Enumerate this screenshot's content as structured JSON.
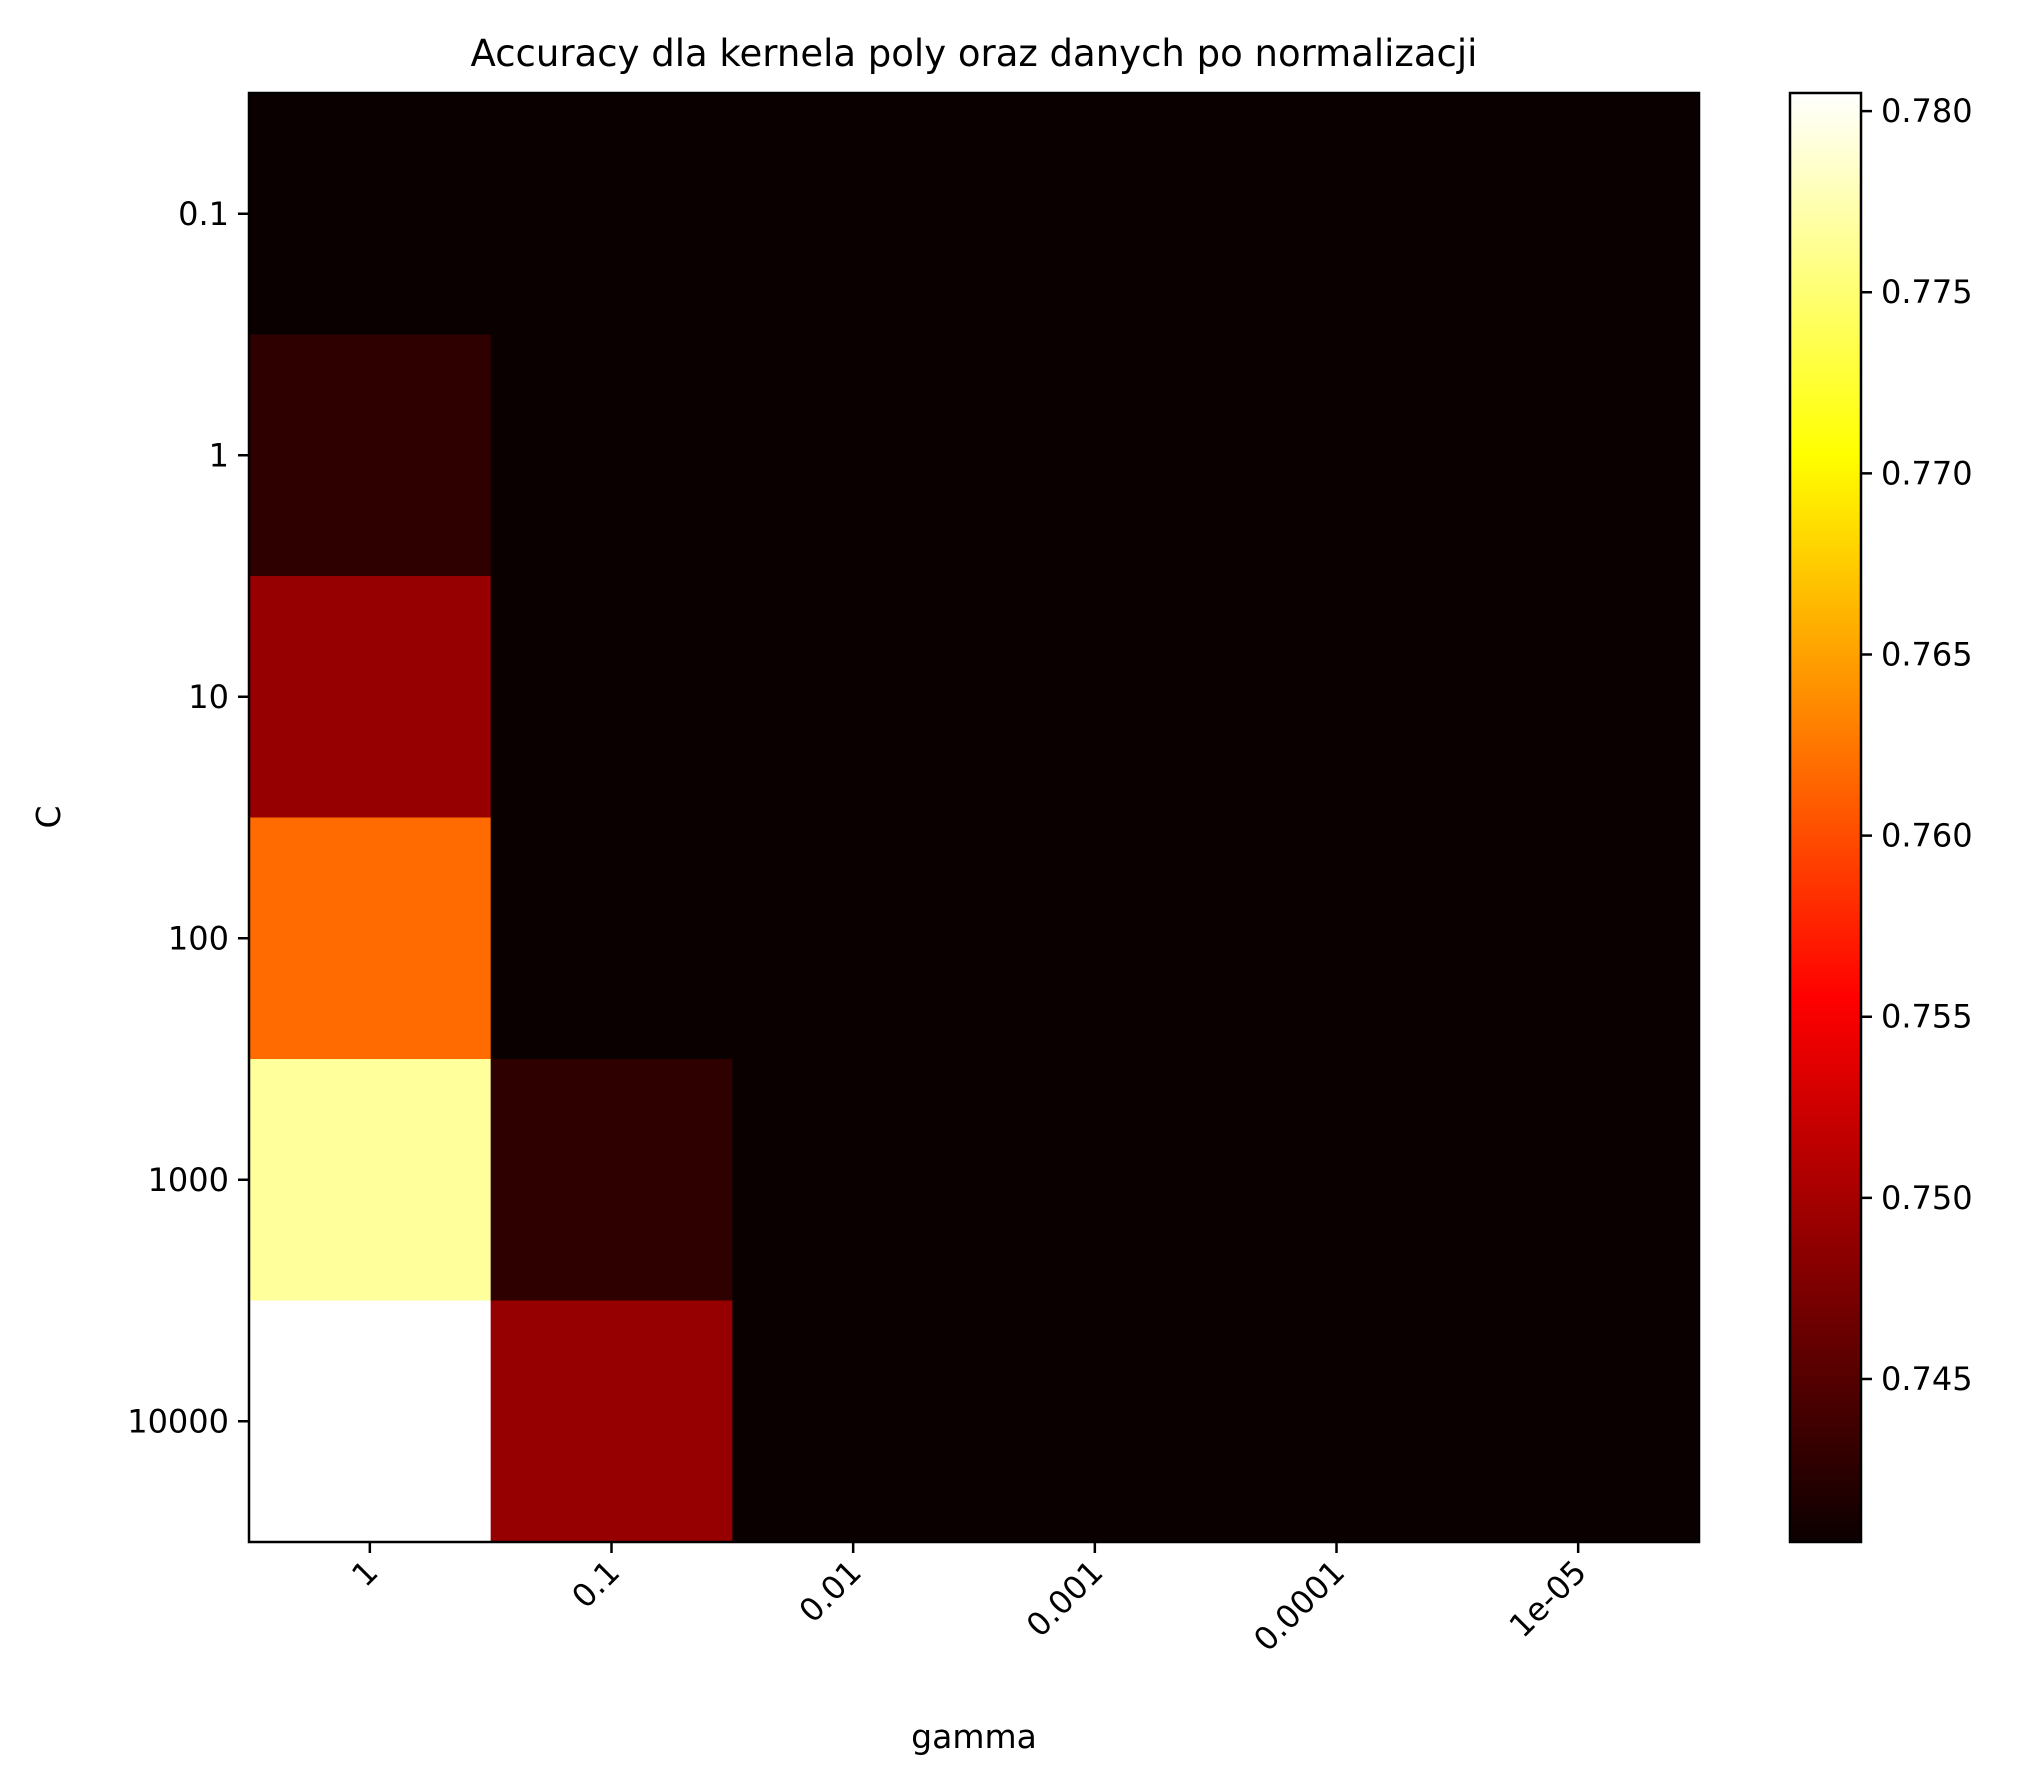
{
  "chart_data": {
    "type": "heatmap",
    "title": "Accuracy dla kernela poly oraz danych po normalizacji",
    "xlabel": "gamma",
    "ylabel": "C",
    "x_categories": [
      "1",
      "0.1",
      "0.01",
      "0.001",
      "0.0001",
      "1e-05"
    ],
    "y_categories": [
      "0.1",
      "1",
      "10",
      "100",
      "1000",
      "10000"
    ],
    "values": [
      [
        0.7405,
        0.7405,
        0.7405,
        0.7405,
        0.7405,
        0.7405
      ],
      [
        0.7425,
        0.7405,
        0.7405,
        0.7405,
        0.7405,
        0.7405
      ],
      [
        0.7485,
        0.7405,
        0.7405,
        0.7405,
        0.7405,
        0.7405
      ],
      [
        0.7615,
        0.7405,
        0.7405,
        0.7405,
        0.7405,
        0.7405
      ],
      [
        0.7765,
        0.7425,
        0.7405,
        0.7405,
        0.7405,
        0.7405
      ],
      [
        0.7805,
        0.7485,
        0.7405,
        0.7405,
        0.7405,
        0.7405
      ]
    ],
    "colormap": "hot",
    "colorbar": {
      "vmin": 0.7405,
      "vmax": 0.7805,
      "ticks": [
        "0.745",
        "0.750",
        "0.755",
        "0.760",
        "0.765",
        "0.770",
        "0.775",
        "0.780"
      ]
    },
    "xtick_rotation": 45,
    "grid": false
  }
}
